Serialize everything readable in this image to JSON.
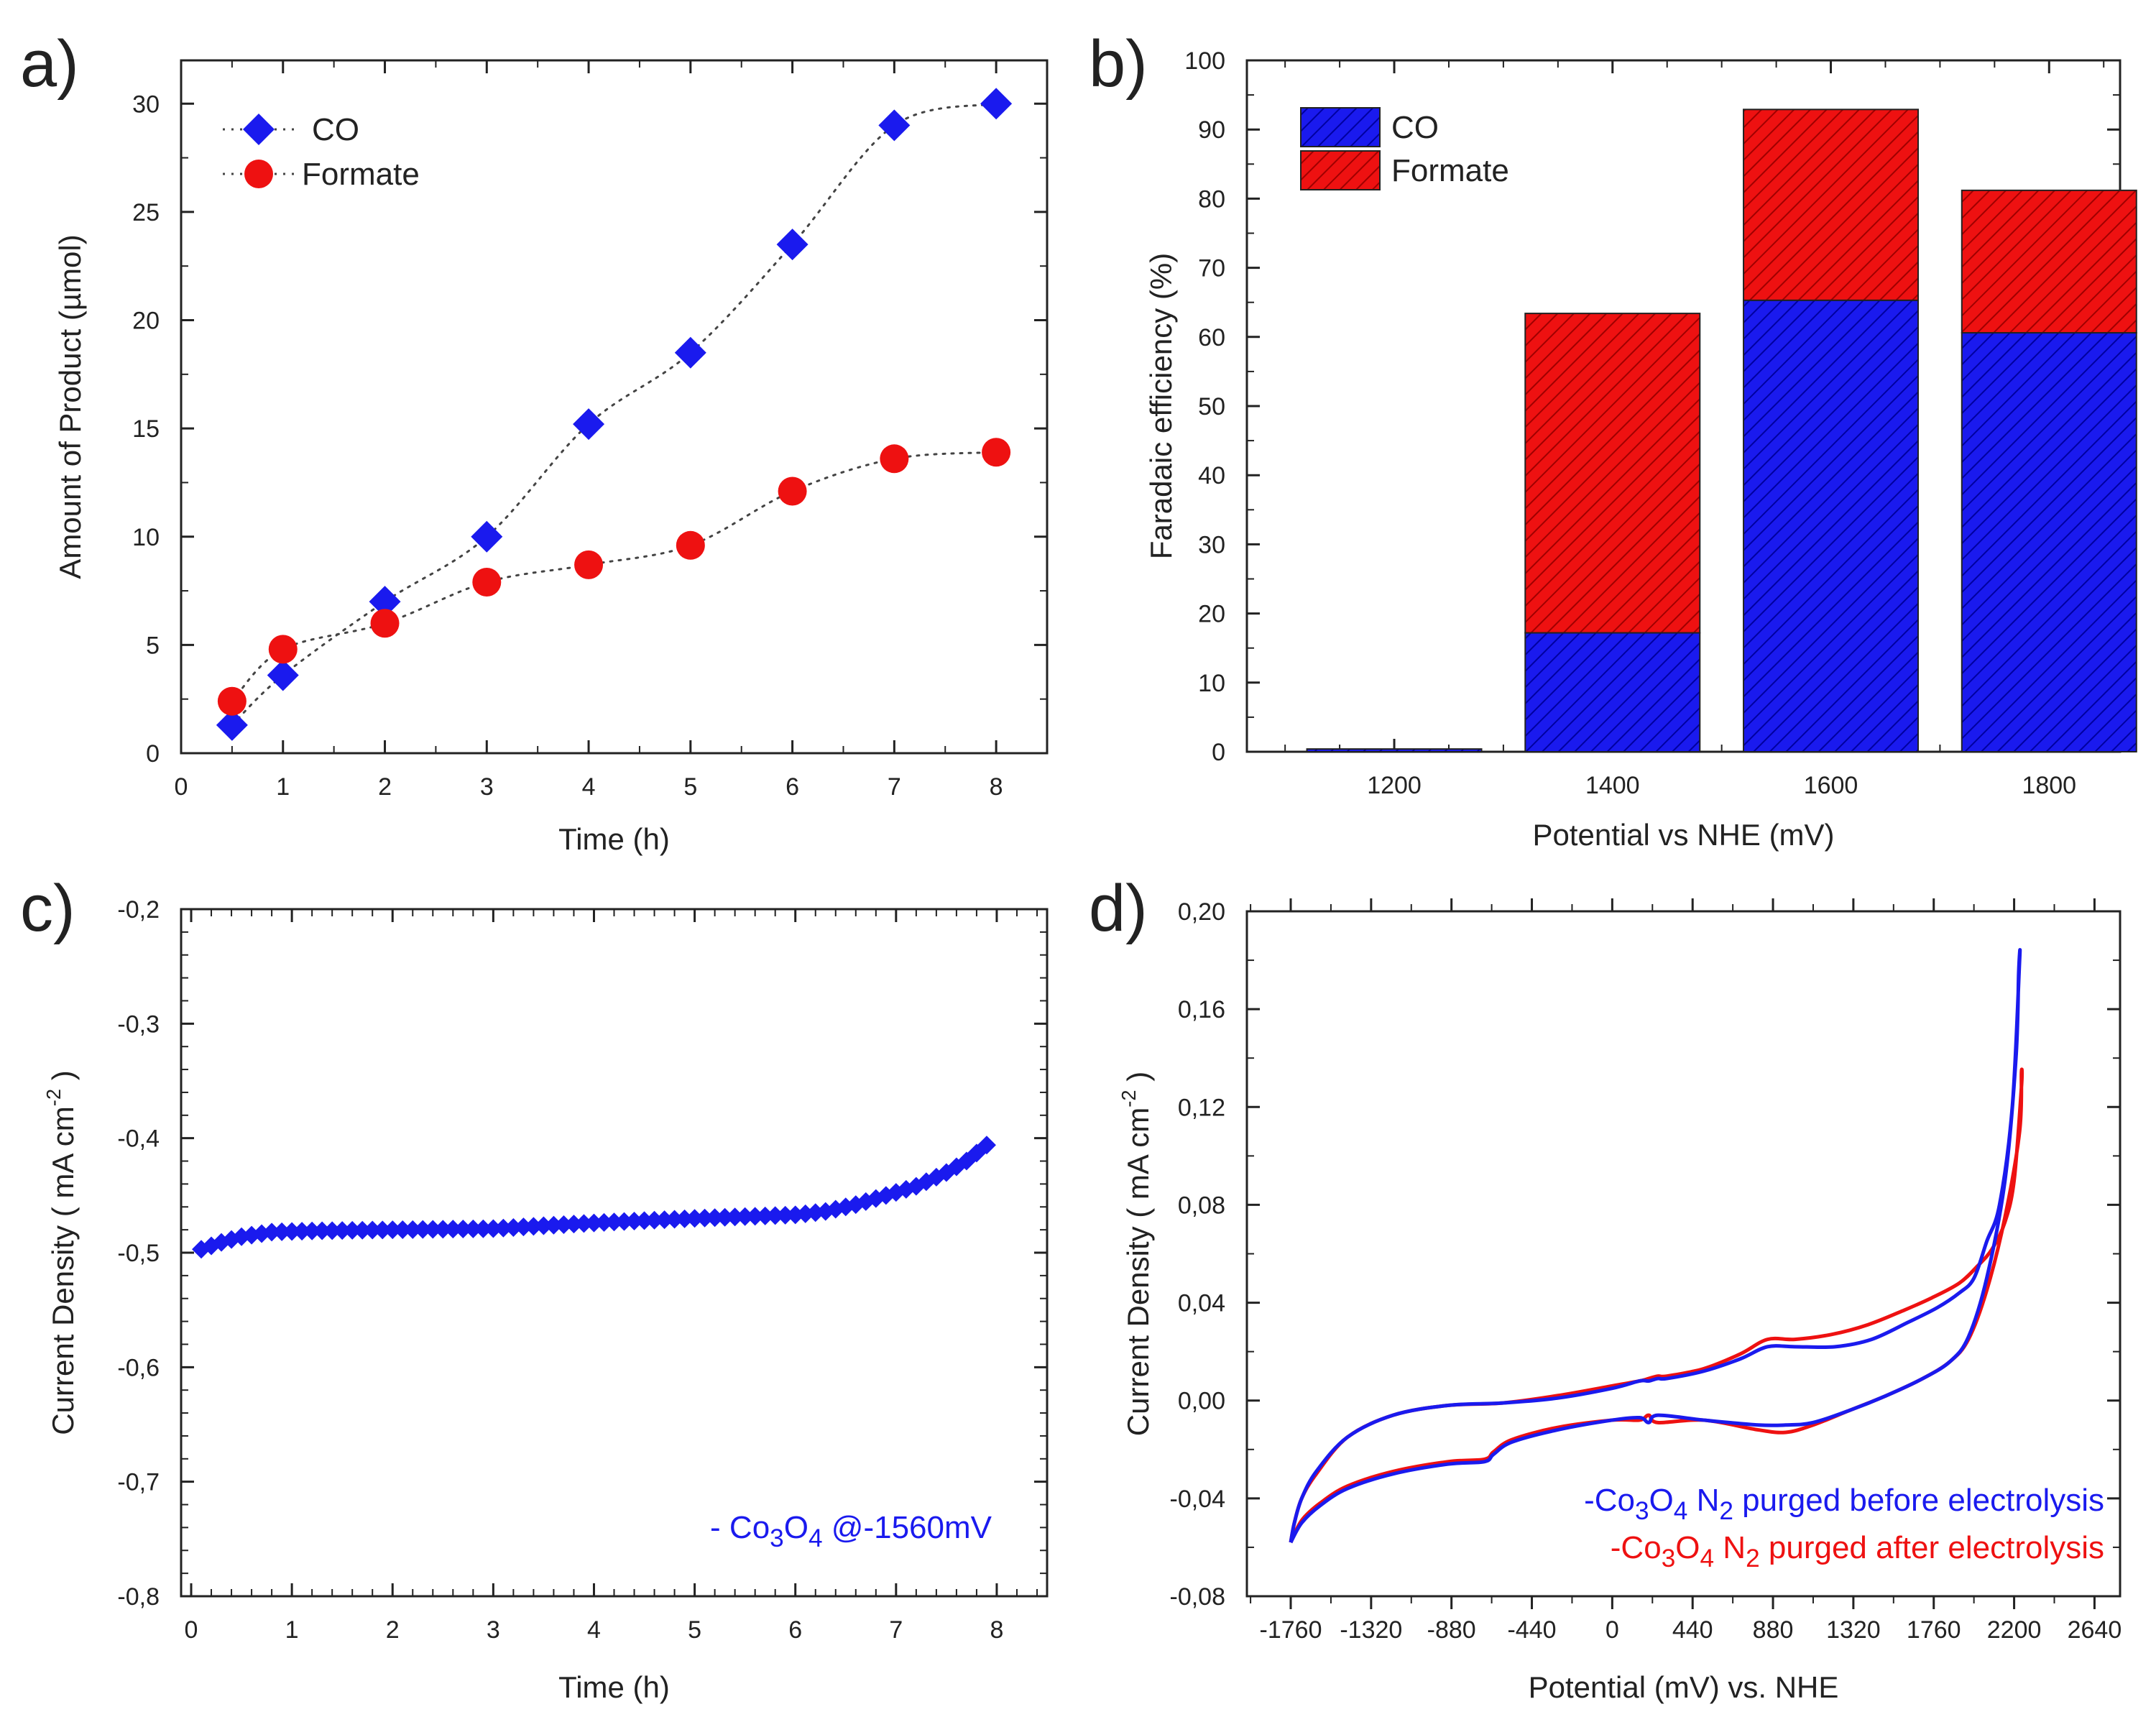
{
  "colors": {
    "co": "#1a1aee",
    "formate": "#ee1111",
    "axis": "#222222",
    "co_dark": "#0000a0",
    "formate_dark": "#a00000"
  },
  "chart_data": [
    {
      "panel": "a)",
      "type": "scatter",
      "xlabel": "Time (h)",
      "ylabel": "Amount of Product (µmol)",
      "xlim": [
        0,
        8.5
      ],
      "ylim": [
        0,
        32
      ],
      "xticks": [
        0,
        1,
        2,
        3,
        4,
        5,
        6,
        7,
        8
      ],
      "yticks": [
        0,
        5,
        10,
        15,
        20,
        25,
        30
      ],
      "legend_position": "top-left",
      "series": [
        {
          "name": "CO",
          "marker": "diamond",
          "color": "#1a1aee",
          "x": [
            0.5,
            1,
            2,
            3,
            4,
            5,
            6,
            7,
            8
          ],
          "y": [
            1.3,
            3.6,
            7.0,
            10.0,
            15.2,
            18.5,
            23.5,
            29.0,
            30.0
          ]
        },
        {
          "name": "Formate",
          "marker": "circle",
          "color": "#ee1111",
          "x": [
            0.5,
            1,
            2,
            3,
            4,
            5,
            6,
            7,
            8
          ],
          "y": [
            2.4,
            4.8,
            6.0,
            7.9,
            8.7,
            9.6,
            12.1,
            13.6,
            13.9
          ]
        }
      ]
    },
    {
      "panel": "b)",
      "type": "bar",
      "stacked": true,
      "xlabel": "Potential vs NHE (mV)",
      "ylabel": "Faradaic efficiency (%)",
      "xlim": [
        1065,
        1865
      ],
      "ylim": [
        0,
        100
      ],
      "categories": [
        "1200",
        "1400",
        "1600",
        "1800"
      ],
      "category_values": [
        1200,
        1400,
        1600,
        1800
      ],
      "xticks": [
        1200,
        1400,
        1600,
        1800
      ],
      "yticks": [
        0,
        10,
        20,
        30,
        40,
        50,
        60,
        70,
        80,
        90,
        100
      ],
      "legend_position": "top-left",
      "series": [
        {
          "name": "CO",
          "color": "#1a1aee",
          "values": [
            0.4,
            17.2,
            65.3,
            60.6
          ]
        },
        {
          "name": "Formate",
          "color": "#ee1111",
          "values": [
            0,
            46.2,
            27.6,
            20.6
          ]
        }
      ]
    },
    {
      "panel": "c)",
      "type": "scatter",
      "xlabel": "Time (h)",
      "ylabel_parts": [
        "Current  Density ( mA cm",
        "-2",
        " )"
      ],
      "xlim": [
        -0.1,
        8.5
      ],
      "ylim": [
        -0.8,
        -0.2
      ],
      "xticks": [
        0,
        1,
        2,
        3,
        4,
        5,
        6,
        7,
        8
      ],
      "yticks": [
        -0.8,
        -0.7,
        -0.6,
        -0.5,
        -0.4,
        -0.3,
        -0.2
      ],
      "ytick_labels": [
        "-0,8",
        "-0,7",
        "-0,6",
        "-0,5",
        "-0,4",
        "-0,3",
        "-0,2"
      ],
      "legend_position": "bottom-right",
      "legend_parts": [
        "- Co",
        "3",
        "O",
        "4",
        "  @-1560mV"
      ],
      "series": [
        {
          "name": "Co3O4 @-1560mV",
          "marker": "diamond",
          "color": "#1a1aee",
          "x_start": 0.1,
          "x_step": 0.1,
          "count": 79,
          "curve_x": [
            0.1,
            0.3,
            0.5,
            0.8,
            1.2,
            2.0,
            3.0,
            4.0,
            5.0,
            6.0,
            6.3,
            6.6,
            6.9,
            7.2,
            7.5,
            7.7,
            7.9
          ],
          "curve_y": [
            -0.497,
            -0.491,
            -0.486,
            -0.482,
            -0.481,
            -0.48,
            -0.479,
            -0.474,
            -0.47,
            -0.467,
            -0.464,
            -0.458,
            -0.45,
            -0.442,
            -0.43,
            -0.42,
            -0.406
          ]
        }
      ]
    },
    {
      "panel": "d)",
      "type": "line",
      "xlabel": "Potential  (mV)  vs. NHE",
      "ylabel_parts": [
        "Current  Density ( mA cm",
        "-2",
        " )"
      ],
      "xlim": [
        -2000,
        2780
      ],
      "ylim": [
        -0.08,
        0.2
      ],
      "xticks": [
        -1760,
        -1320,
        -880,
        -440,
        0,
        440,
        880,
        1320,
        1760,
        2200,
        2640
      ],
      "yticks": [
        -0.08,
        -0.04,
        0.0,
        0.04,
        0.08,
        0.12,
        0.16,
        0.2
      ],
      "ytick_labels": [
        "-0,08",
        "-0,04",
        "0,00",
        "0,04",
        "0,08",
        "0,12",
        "0,16",
        "0,20"
      ],
      "legend_position": "bottom-right",
      "legend": [
        {
          "parts": [
            "-Co",
            "3",
            "O",
            "4",
            " N",
            "2",
            " purged before electrolysis"
          ],
          "color": "#1a1aee"
        },
        {
          "parts": [
            "-Co",
            "3",
            "O",
            "4",
            " N",
            "2",
            " purged  after electrolysis"
          ],
          "color": "#ee1111"
        }
      ],
      "series": [
        {
          "name": "Co3O4 N2 purged after electrolysis",
          "color": "#ee1111",
          "x": [
            -1760,
            -1700,
            -1600,
            -1450,
            -1200,
            -900,
            -700,
            -650,
            -550,
            -300,
            0,
            150,
            200,
            250,
            500,
            800,
            950,
            1100,
            1300,
            1500,
            1700,
            1850,
            1950,
            2050,
            2150,
            2230,
            2240,
            2240,
            2200,
            2150,
            2080,
            2000,
            1900,
            1750,
            1600,
            1400,
            1200,
            1000,
            850,
            700,
            500,
            300,
            250,
            200,
            150,
            0,
            -300,
            -600,
            -900,
            -1200,
            -1450,
            -1620,
            -1700,
            -1740,
            -1760
          ],
          "y": [
            -0.058,
            -0.049,
            -0.042,
            -0.035,
            -0.029,
            -0.025,
            -0.024,
            -0.021,
            -0.016,
            -0.011,
            -0.008,
            -0.008,
            -0.006,
            -0.009,
            -0.008,
            -0.012,
            -0.013,
            -0.01,
            -0.004,
            0.002,
            0.009,
            0.016,
            0.025,
            0.045,
            0.075,
            0.11,
            0.134,
            0.128,
            0.09,
            0.073,
            0.062,
            0.055,
            0.048,
            0.042,
            0.037,
            0.031,
            0.027,
            0.025,
            0.025,
            0.019,
            0.013,
            0.01,
            0.01,
            0.009,
            0.008,
            0.006,
            0.002,
            -0.001,
            -0.002,
            -0.006,
            -0.015,
            -0.03,
            -0.04,
            -0.05,
            -0.058
          ]
        },
        {
          "name": "Co3O4 N2 purged before electrolysis",
          "color": "#1a1aee",
          "x": [
            -1760,
            -1700,
            -1600,
            -1450,
            -1200,
            -900,
            -700,
            -650,
            -550,
            -300,
            0,
            150,
            200,
            250,
            500,
            800,
            950,
            1100,
            1300,
            1500,
            1700,
            1850,
            1950,
            2050,
            2150,
            2210,
            2225,
            2230,
            2190,
            2120,
            2050,
            1980,
            1900,
            1780,
            1620,
            1420,
            1220,
            1000,
            850,
            700,
            500,
            300,
            250,
            200,
            150,
            0,
            -300,
            -600,
            -900,
            -1200,
            -1450,
            -1620,
            -1700,
            -1740,
            -1760
          ],
          "y": [
            -0.058,
            -0.05,
            -0.043,
            -0.036,
            -0.03,
            -0.026,
            -0.025,
            -0.022,
            -0.017,
            -0.012,
            -0.008,
            -0.007,
            -0.009,
            -0.006,
            -0.008,
            -0.01,
            -0.01,
            -0.009,
            -0.004,
            0.002,
            0.009,
            0.016,
            0.026,
            0.05,
            0.09,
            0.14,
            0.175,
            0.18,
            0.12,
            0.08,
            0.065,
            0.05,
            0.044,
            0.038,
            0.032,
            0.025,
            0.022,
            0.022,
            0.022,
            0.017,
            0.012,
            0.009,
            0.009,
            0.008,
            0.008,
            0.005,
            0.001,
            -0.001,
            -0.002,
            -0.006,
            -0.015,
            -0.029,
            -0.04,
            -0.05,
            -0.058
          ]
        }
      ]
    }
  ]
}
